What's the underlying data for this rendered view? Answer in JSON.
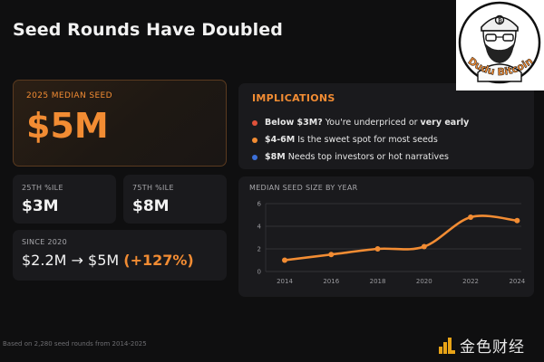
{
  "title": "Seed Rounds Have Doubled",
  "median": {
    "label": "2025 MEDIAN SEED",
    "value": "$5M"
  },
  "p25": {
    "label": "25TH %ILE",
    "value": "$3M"
  },
  "p75": {
    "label": "75TH %ILE",
    "value": "$8M"
  },
  "since": {
    "label": "SINCE 2020",
    "value": "$2.2M → $5M",
    "pct": "(+127%)"
  },
  "implications": {
    "title": "IMPLICATIONS",
    "items": [
      {
        "bold": "Below $3M?",
        "text": "You're underpriced or",
        "post": "very early",
        "color": "#e0513a"
      },
      {
        "bold": "$4-6M",
        "text": "Is the sweet spot for most seeds",
        "post": "",
        "color": "#f28c33"
      },
      {
        "bold": "$8M",
        "text": "Needs top investors or hot narratives",
        "post": "",
        "color": "#3b6fd8"
      }
    ]
  },
  "chart_title": "MEDIAN SEED SIZE BY YEAR",
  "chart_data": {
    "type": "line",
    "x": [
      2014,
      2016,
      2018,
      2020,
      2022,
      2024
    ],
    "values": [
      1.0,
      1.5,
      2.0,
      2.2,
      4.8,
      4.5
    ],
    "xticks": [
      "2014",
      "2016",
      "2018",
      "2020",
      "2022",
      "2024"
    ],
    "yticks": [
      "0",
      "2",
      "4",
      "6"
    ],
    "xlabel": "",
    "ylabel": "",
    "ylim": [
      0,
      6
    ],
    "color": "#f28c33",
    "grid": true
  },
  "avatar": {
    "caption": "Dudu Bitcoin"
  },
  "brand": {
    "text": "金色财经"
  },
  "footnote": "Based on 2,280 seed rounds from 2014-2025"
}
